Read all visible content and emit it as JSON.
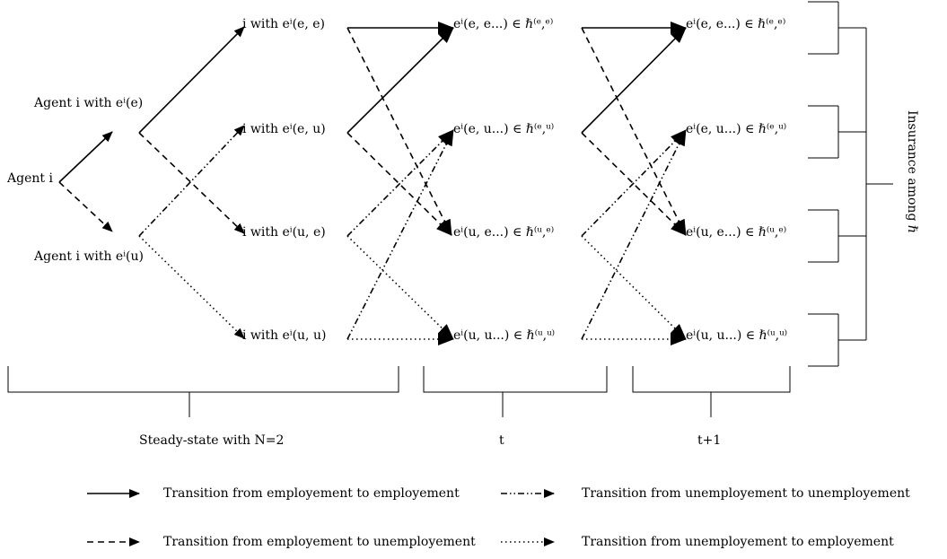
{
  "nodes": {
    "agent": "Agent i",
    "agent_e": "Agent i with eⁱ(e)",
    "agent_u": "Agent i with eⁱ(u)",
    "s_ee": "i with eⁱ(e, e)",
    "s_eu": "i with eⁱ(e, u)",
    "s_ue": "i with eⁱ(u, e)",
    "s_uu": "i with eⁱ(u, u)",
    "t_ee": "eⁱ(e, e...) ∈ ℏ⁽ᵉ,ᵉ⁾",
    "t_eu": "eⁱ(e, u...) ∈ ℏ⁽ᵉ,ᵘ⁾",
    "t_ue": "eⁱ(u, e...) ∈ ℏ⁽ᵘ,ᵉ⁾",
    "t_uu": "eⁱ(u, u...) ∈ ℏ⁽ᵘ,ᵘ⁾",
    "t1_ee": "eⁱ(e, e...) ∈ ℏ⁽ᵉ,ᵉ⁾",
    "t1_eu": "eⁱ(e, u...) ∈ ℏ⁽ᵉ,ᵘ⁾",
    "t1_ue": "eⁱ(u, e...) ∈ ℏ⁽ᵘ,ᵉ⁾",
    "t1_uu": "eⁱ(u, u...) ∈ ℏ⁽ᵘ,ᵘ⁾"
  },
  "brackets": {
    "steady": "Steady-state with N=2",
    "t": "t",
    "t1": "t+1",
    "insurance": "Insurance among ℏ"
  },
  "legend": {
    "ee": "Transition from employement to employement",
    "eu": "Transition from employement to unemployement",
    "uu": "Transition from unemployement to unemployement",
    "ue": "Transition from unemployement to employement"
  }
}
